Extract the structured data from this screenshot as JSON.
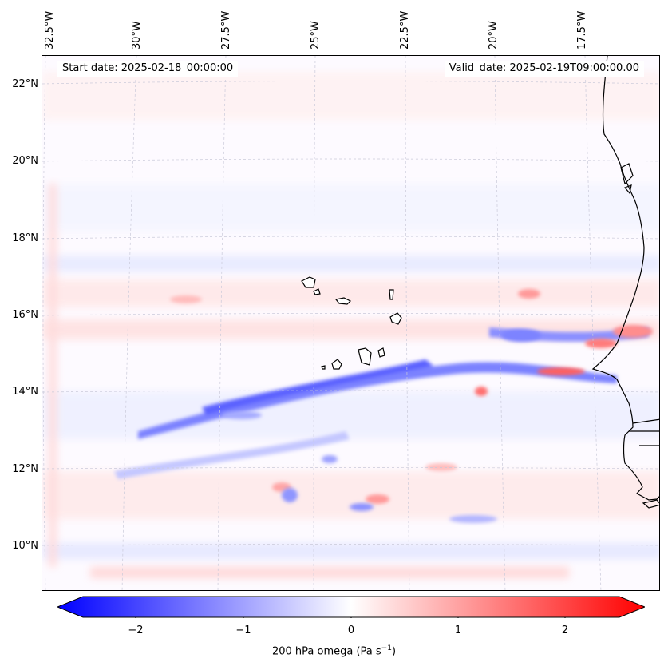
{
  "map": {
    "start_date": "Start date: 2025-02-18_00:00:00",
    "valid_date": "Valid_date: 2025-02-19T09:00:00.00",
    "lon_labels": [
      "32.5°W",
      "30°W",
      "27.5°W",
      "25°W",
      "22.5°W",
      "20°W",
      "17.5°W"
    ],
    "lat_labels": [
      "22°N",
      "20°N",
      "18°N",
      "16°N",
      "14°N",
      "12°N",
      "10°N"
    ]
  },
  "colorbar": {
    "ticks": [
      "−2",
      "−1",
      "0",
      "1",
      "2"
    ],
    "label_main": "200 hPa omega (Pa s",
    "label_exp": "−1",
    "label_end": ")",
    "min": -2.6,
    "max": 2.6,
    "colors": {
      "negative": "#0000ff",
      "zero": "#ffffff",
      "positive": "#ff0000"
    }
  }
}
